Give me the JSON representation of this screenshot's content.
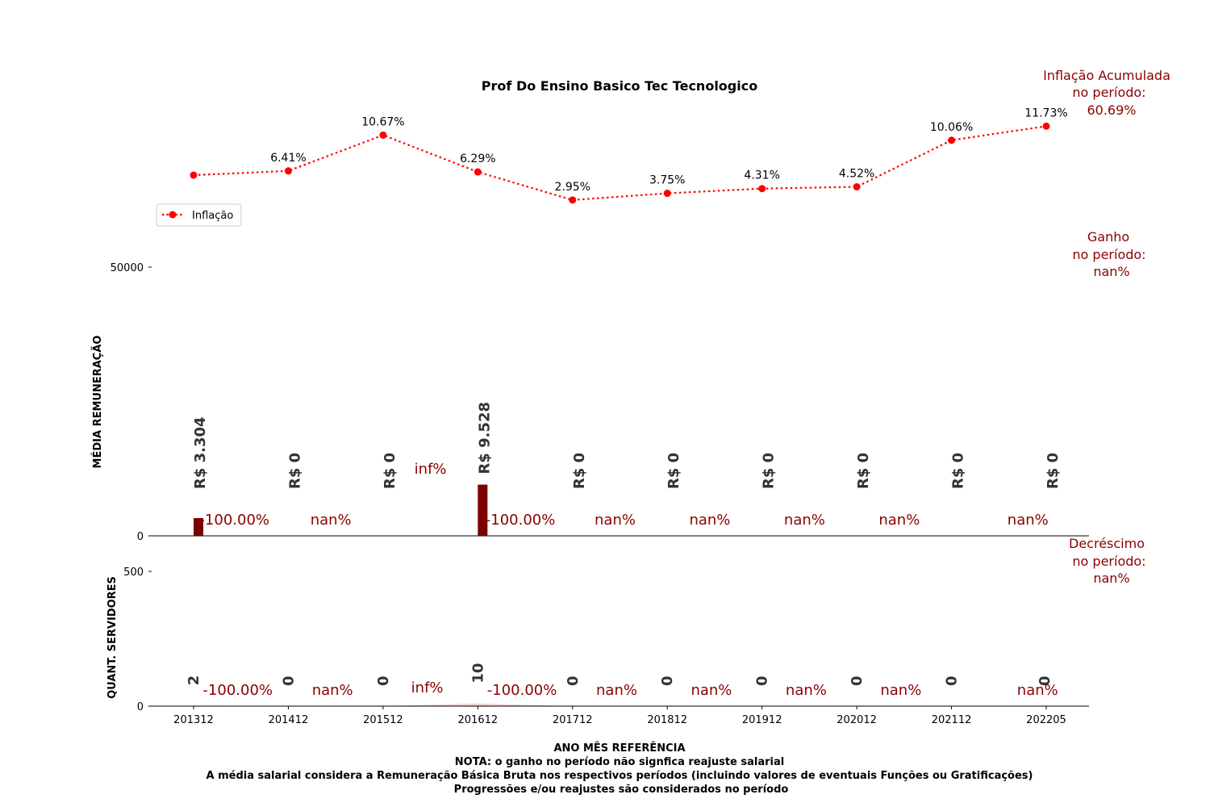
{
  "title": "Prof Do Ensino Basico Tec Tecnologico",
  "colors": {
    "inflation_line": "#ff0000",
    "bar": "#7b0000",
    "annotation": "#8b0000",
    "value_label": "#333333",
    "area_fill": "#f2c8c0"
  },
  "summary": {
    "inflation_lines": [
      "Inflação Acumulada",
      "no período:",
      "60.69%"
    ],
    "gain_lines": [
      "Ganho",
      "no período:",
      "nan%"
    ],
    "decrease_lines": [
      "Decréscimo",
      "no período:",
      "nan%"
    ]
  },
  "notes": {
    "xlabel": "ANO MÊS REFERÊNCIA",
    "line1": "NOTA: o ganho no período não signfica reajuste salarial",
    "line2": "A média salarial considera a Remuneração Básica Bruta nos respectivos períodos (incluindo valores de eventuais Funções ou Gratificações)",
    "line3": "Progressões e/ou reajustes são considerados no período"
  },
  "chart_data": [
    {
      "type": "line",
      "name": "inflation",
      "legend": "Inflação",
      "legend_position": "center-left",
      "x": [
        "201312",
        "201412",
        "201512",
        "201612",
        "201712",
        "201812",
        "201912",
        "202012",
        "202112",
        "202205"
      ],
      "values": [
        5.91,
        6.41,
        10.67,
        6.29,
        2.95,
        3.75,
        4.31,
        4.52,
        10.06,
        11.73
      ],
      "labels": [
        "",
        "6.41%",
        "10.67%",
        "6.29%",
        "2.95%",
        "3.75%",
        "4.31%",
        "4.52%",
        "10.06%",
        "11.73%"
      ]
    },
    {
      "type": "bar",
      "name": "salary",
      "ylabel": "MÉDIA REMUNERAÇÃO",
      "yticks": [
        0,
        50000
      ],
      "ylim": [
        0,
        50000
      ],
      "categories": [
        "201312",
        "201412",
        "201512",
        "201612",
        "201712",
        "201812",
        "201912",
        "202012",
        "202112",
        "202205"
      ],
      "values": [
        3304,
        0,
        0,
        9528,
        0,
        0,
        0,
        0,
        0,
        0
      ],
      "value_labels": [
        "R$ 3.304",
        "R$ 0",
        "R$ 0",
        "R$ 9.528",
        "R$ 0",
        "R$ 0",
        "R$ 0",
        "R$ 0",
        "R$ 0",
        "R$ 0"
      ],
      "pct_change_labels": [
        "-100.00%",
        "nan%",
        "inf%",
        "-100.00%",
        "nan%",
        "nan%",
        "nan%",
        "nan%",
        "nan%"
      ]
    },
    {
      "type": "area",
      "name": "staff_count",
      "ylabel": "QUANT. SERVIDORES",
      "yticks": [
        0,
        500
      ],
      "ylim": [
        0,
        500
      ],
      "xlabel": "ANO MÊS REFERÊNCIA",
      "x": [
        "201312",
        "201412",
        "201512",
        "201612",
        "201712",
        "201812",
        "201912",
        "202012",
        "202112",
        "202205"
      ],
      "values": [
        2,
        0,
        0,
        10,
        0,
        0,
        0,
        0,
        0,
        0
      ],
      "value_labels": [
        "2",
        "0",
        "0",
        "10",
        "0",
        "0",
        "0",
        "0",
        "0",
        "0"
      ],
      "pct_change_labels": [
        "-100.00%",
        "nan%",
        "inf%",
        "-100.00%",
        "nan%",
        "nan%",
        "nan%",
        "nan%",
        "nan%"
      ]
    }
  ]
}
